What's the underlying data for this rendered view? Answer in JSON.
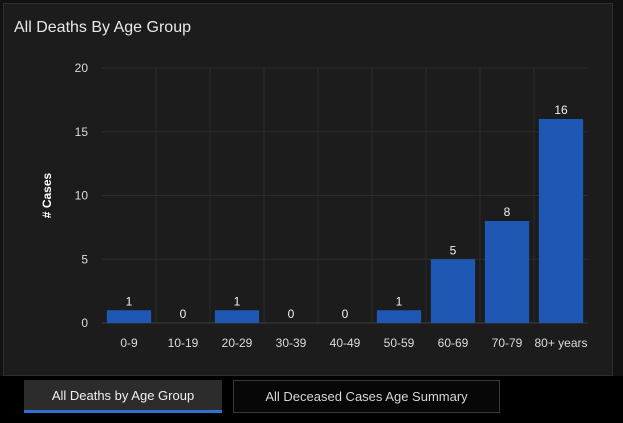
{
  "panel": {
    "title": "All Deaths By Age Group"
  },
  "tabs": [
    {
      "label": "All Deaths by Age Group",
      "active": true
    },
    {
      "label": "All Deceased Cases Age Summary",
      "active": false
    }
  ],
  "chart_data": {
    "type": "bar",
    "title": "All Deaths By Age Group",
    "xlabel": "",
    "ylabel": "# Cases",
    "categories": [
      "0-9",
      "10-19",
      "20-29",
      "30-39",
      "40-49",
      "50-59",
      "60-69",
      "70-79",
      "80+ years"
    ],
    "values": [
      1,
      0,
      1,
      0,
      0,
      1,
      5,
      8,
      16
    ],
    "ylim": [
      0,
      20
    ],
    "yticks": [
      0,
      5,
      10,
      15,
      20
    ],
    "data_labels": true,
    "grid": true,
    "bar_color": "#1f57b5",
    "background": "#1c1c1c"
  }
}
